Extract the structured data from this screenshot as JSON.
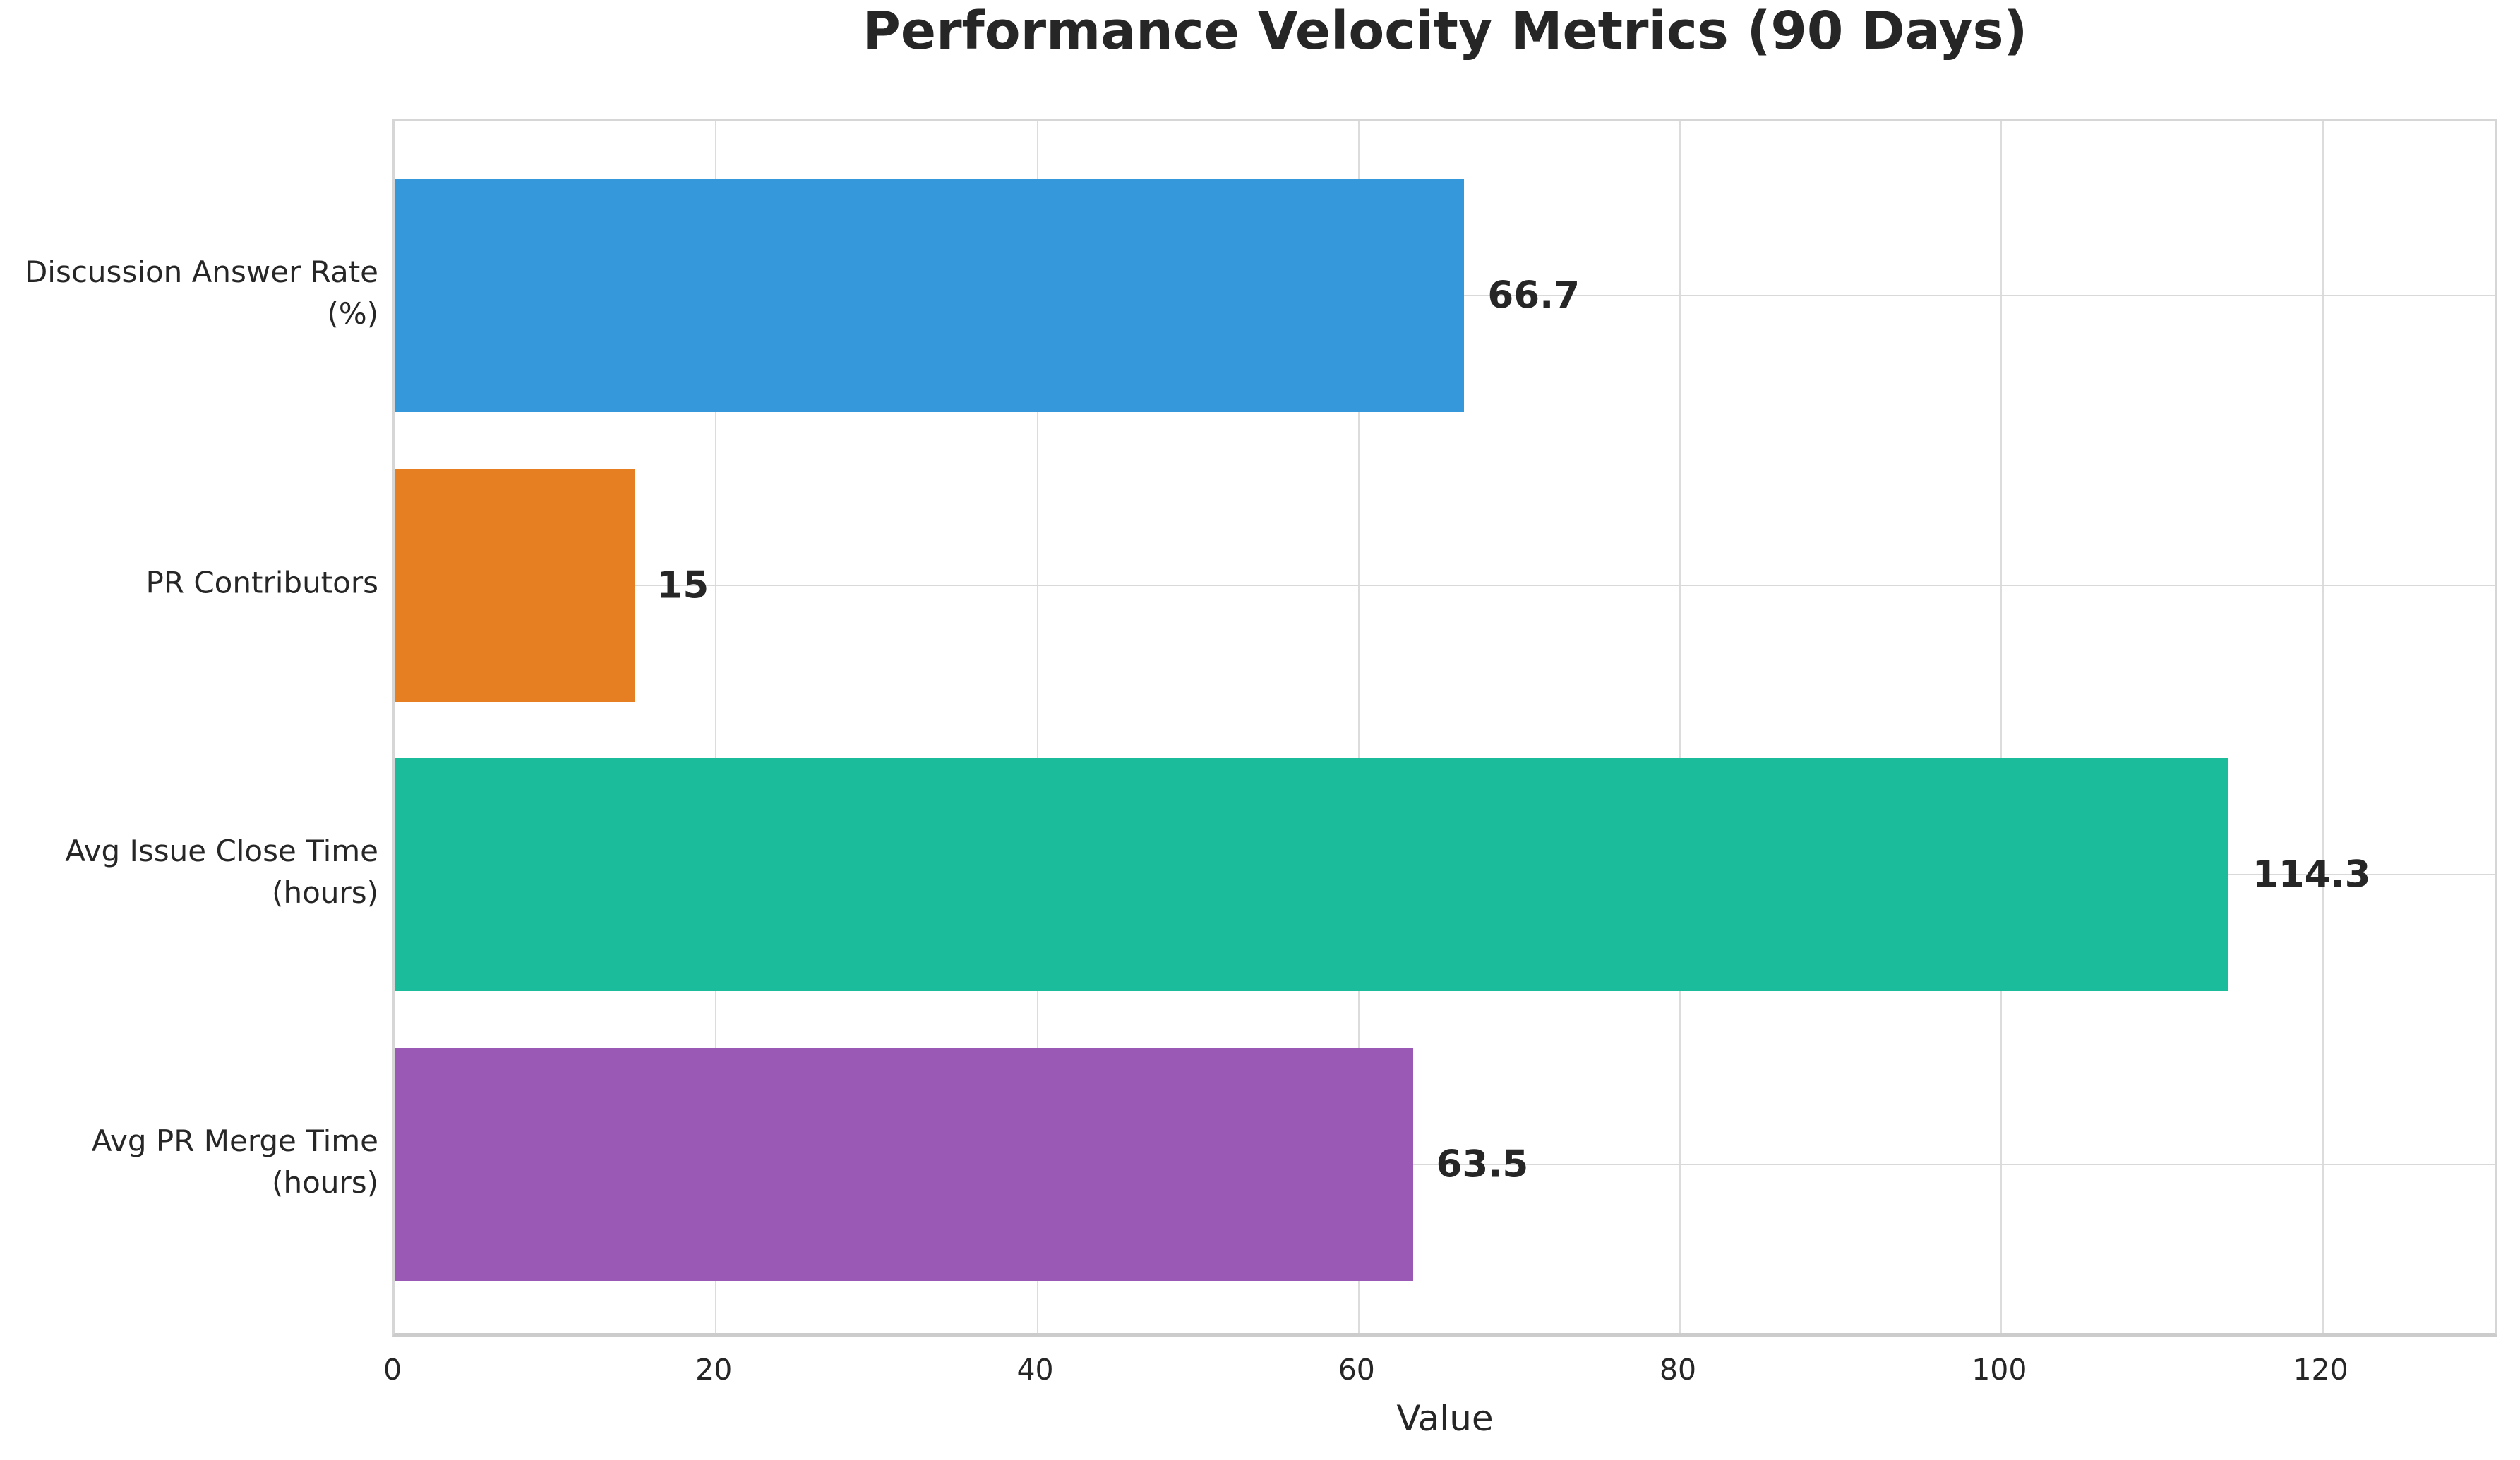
{
  "page": {
    "background": "#ffffff"
  },
  "chart_data": {
    "type": "bar",
    "orientation": "horizontal",
    "title": "Performance Velocity Metrics (90 Days)",
    "xlabel": "Value",
    "ylabel": "",
    "xlim": [
      0,
      131
    ],
    "xticks": [
      "0",
      "20",
      "40",
      "60",
      "80",
      "100",
      "120"
    ],
    "xtick_values": [
      0,
      20,
      40,
      60,
      80,
      100,
      120
    ],
    "grid": true,
    "legend_position": "none",
    "categories": [
      "Discussion Answer Rate\n(%)",
      "PR Contributors",
      "Avg Issue Close Time\n(hours)",
      "Avg PR Merge Time\n(hours)"
    ],
    "values": [
      66.7,
      15,
      114.3,
      63.5
    ],
    "value_labels": [
      "66.7",
      "15",
      "114.3",
      "63.5"
    ],
    "bar_colors": [
      "#3498db",
      "#e67e22",
      "#1abc9c",
      "#9b59b6"
    ],
    "colors": {
      "text": "#262626",
      "grid": "#dcdcdc",
      "spine": "#d6d6d6",
      "bottom_spine": "#cccccc",
      "background": "#ffffff"
    }
  }
}
